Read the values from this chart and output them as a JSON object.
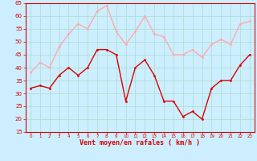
{
  "title": "",
  "xlabel": "Vent moyen/en rafales ( km/h )",
  "ylabel": "",
  "background_color": "#cceeff",
  "grid_color": "#aaddcc",
  "x_values": [
    0,
    1,
    2,
    3,
    4,
    5,
    6,
    7,
    8,
    9,
    10,
    11,
    12,
    13,
    14,
    15,
    16,
    17,
    18,
    19,
    20,
    21,
    22,
    23
  ],
  "mean_wind": [
    32,
    33,
    32,
    37,
    40,
    37,
    40,
    47,
    47,
    45,
    27,
    40,
    43,
    37,
    27,
    27,
    21,
    23,
    20,
    32,
    35,
    35,
    41,
    45
  ],
  "gust_wind": [
    38,
    42,
    40,
    48,
    53,
    57,
    55,
    62,
    64,
    54,
    49,
    54,
    60,
    53,
    52,
    45,
    45,
    47,
    44,
    49,
    51,
    49,
    57,
    58
  ],
  "mean_color": "#dd0000",
  "gust_color": "#ffaaaa",
  "ylim_min": 15,
  "ylim_max": 65,
  "yticks": [
    15,
    20,
    25,
    30,
    35,
    40,
    45,
    50,
    55,
    60,
    65
  ],
  "marker_size": 2,
  "line_width": 1.0
}
